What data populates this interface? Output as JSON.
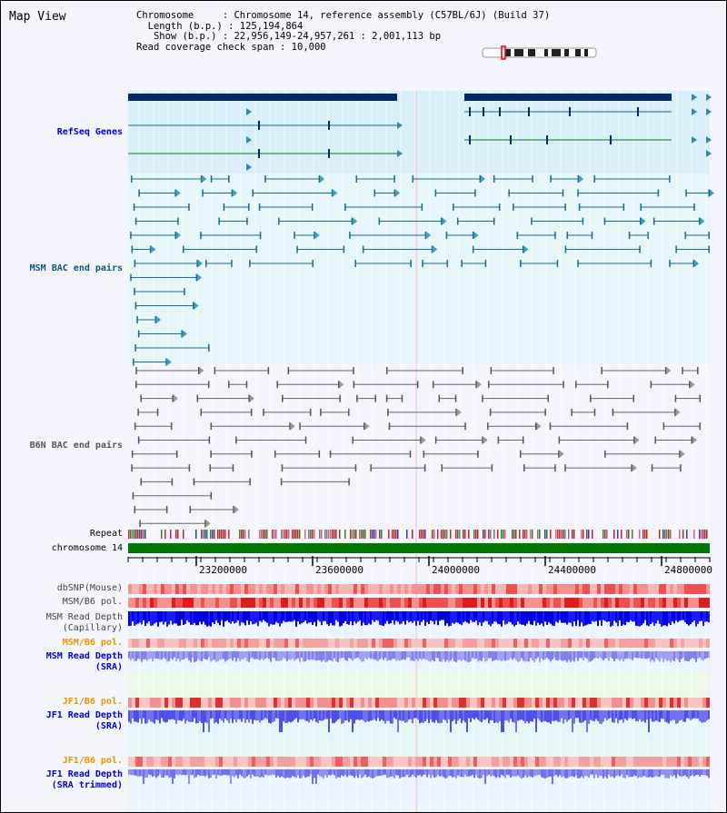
{
  "title": "Map View",
  "info": {
    "chromosome": "Chromosome     : Chromosome 14, reference assembly (C57BL/6J) (Build 37)",
    "length": "  Length (b.p.) : 125,194,864",
    "show": "   Show (b.p.) : 22,956,149-24,957,261 : 2,001,113 bp",
    "coverage": "Read coverage check span : 10,000"
  },
  "tracks": {
    "refseq": "RefSeq Genes",
    "msm_bac": "MSM BAC end pairs",
    "b6n_bac": "B6N BAC end pairs",
    "repeat": "Repeat",
    "chromosome": "chromosome 14",
    "dbsnp": "dbSNP(Mouse)",
    "msm_b6_pol": "MSM/B6 pol.",
    "msm_depth_cap": "MSM Read Depth\n(Capillary)",
    "msm_b6_pol2": "MSM/B6 pol.",
    "msm_depth_sra": "MSM Read Depth\n(SRA)",
    "jf1_b6_pol": "JF1/B6 pol.",
    "jf1_depth_sra": "JF1 Read Depth\n(SRA)",
    "jf1_b6_pol2": "JF1/B6 pol.",
    "jf1_depth_trim": "JF1 Read Depth\n(SRA trimmed)"
  },
  "axis": {
    "ticks": [
      "23200000",
      "23600000",
      "24000000",
      "24400000",
      "24800000"
    ]
  },
  "colors": {
    "refseq_label": "#0000cc",
    "msm_bac_label": "#0b5580",
    "b6n_bac_label": "#555555",
    "orange_label": "#e69500",
    "blue_label": "#0000cc",
    "chromosome_bar": "#007700",
    "gene_block": "#002a66"
  }
}
